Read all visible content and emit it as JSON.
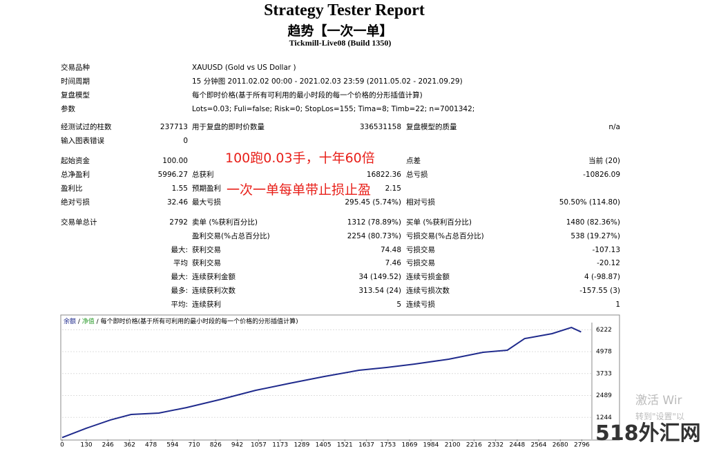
{
  "header": {
    "title": "Strategy Tester Report",
    "subtitle": "趋势【一次一单】",
    "build": "Tickmill-Live08 (Build 1350)"
  },
  "settings": [
    {
      "label": "交易品种",
      "value": "XAUUSD (Gold vs US Dollar )"
    },
    {
      "label": "时间周期",
      "value": "15 分钟图 2011.02.02 00:00 - 2021.02.03 23:59 (2011.05.02 - 2021.09.29)"
    },
    {
      "label": "复盘模型",
      "value": "每个即时价格(基于所有可利用的最小时段的每一个价格的分形插值计算)"
    },
    {
      "label": "参数",
      "value": "Lots=0.03; Fuli=false; Risk=0; StopLos=155; Tima=8; Timb=22; n=7001342;"
    }
  ],
  "stats": [
    [
      {
        "l1": "经测试过的柱数",
        "v1": "237713",
        "l2": "用于复盘的即时价数量",
        "v2": "336531158",
        "l3": "复盘模型的质量",
        "v3": "n/a"
      },
      {
        "l1": "输入图表错误",
        "v1": "0"
      }
    ],
    [
      {
        "l1": "起始资金",
        "v1": "100.00",
        "l3": "点差",
        "v3": "当前 (20)"
      },
      {
        "l1": "总净盈利",
        "v1": "5996.27",
        "l2": "总获利",
        "v2": "16822.36",
        "l3": "总亏损",
        "v3": "-10826.09"
      },
      {
        "l1": "盈利比",
        "v1": "1.55",
        "l2": "预期盈利",
        "v2": "2.15"
      },
      {
        "l1": "绝对亏损",
        "v1": "32.46",
        "l2": "最大亏损",
        "v2": "295.45 (5.74%)",
        "l3": "相对亏损",
        "v3": "50.50% (114.80)"
      }
    ],
    [
      {
        "l1": "交易单总计",
        "v1": "2792",
        "l2": "卖单 (%获利百分比)",
        "v2": "1312 (78.89%)",
        "l3": "买单 (%获利百分比)",
        "v3": "1480 (82.36%)"
      },
      {
        "l2": "盈利交易(%占总百分比)",
        "v2": "2254 (80.73%)",
        "l3": "亏损交易(%占总百分比)",
        "v3": "538 (19.27%)"
      },
      {
        "v1": "最大:",
        "l2": "获利交易",
        "v2": "74.48",
        "l3": "亏损交易",
        "v3": "-107.13"
      },
      {
        "v1": "平均",
        "l2": "获利交易",
        "v2": "7.46",
        "l3": "亏损交易",
        "v3": "-20.12"
      },
      {
        "v1": "最大:",
        "l2": "连续获利金额",
        "v2": "34 (149.52)",
        "l3": "连续亏损金额",
        "v3": "4 (-98.87)"
      },
      {
        "v1": "最多:",
        "l2": "连续获利次数",
        "v2": "313.54 (24)",
        "l3": "连续亏损次数",
        "v3": "-157.55 (3)"
      },
      {
        "v1": "平均:",
        "l2": "连续获利",
        "v2": "5",
        "l3": "连续亏损",
        "v3": "1"
      }
    ]
  ],
  "annotations": [
    "100跑0.03手，十年60倍",
    "一次一单每单带止损止盈"
  ],
  "watermarks": [
    "激活 Wir",
    "转到\"设置\"以",
    "518外汇网"
  ],
  "chart_data": {
    "type": "line",
    "legend": [
      "余额",
      "净值",
      "每个即时价格(基于所有可利用的最小时段的每一个价格的分形插值计算)"
    ],
    "series": [
      {
        "name": "余额",
        "color": "#1f2a8c",
        "x": [
          0,
          130,
          260,
          371,
          520,
          668,
          854,
          1040,
          1225,
          1411,
          1597,
          1745,
          1894,
          2080,
          2265,
          2395,
          2488,
          2636,
          2740,
          2792
        ],
        "values": [
          100,
          630,
          1100,
          1410,
          1490,
          1800,
          2270,
          2780,
          3180,
          3570,
          3920,
          4080,
          4270,
          4550,
          4940,
          5060,
          5720,
          6000,
          6350,
          6096
        ]
      }
    ],
    "xlim": [
      0,
      2850
    ],
    "ylim": [
      0,
      6510
    ],
    "xticks": [
      0,
      130,
      246,
      362,
      478,
      594,
      710,
      826,
      942,
      1057,
      1173,
      1289,
      1405,
      1521,
      1637,
      1753,
      1869,
      1984,
      2100,
      2216,
      2332,
      2448,
      2564,
      2680,
      2796
    ],
    "yticks": [
      1244,
      2489,
      3733,
      4978,
      6222
    ]
  }
}
